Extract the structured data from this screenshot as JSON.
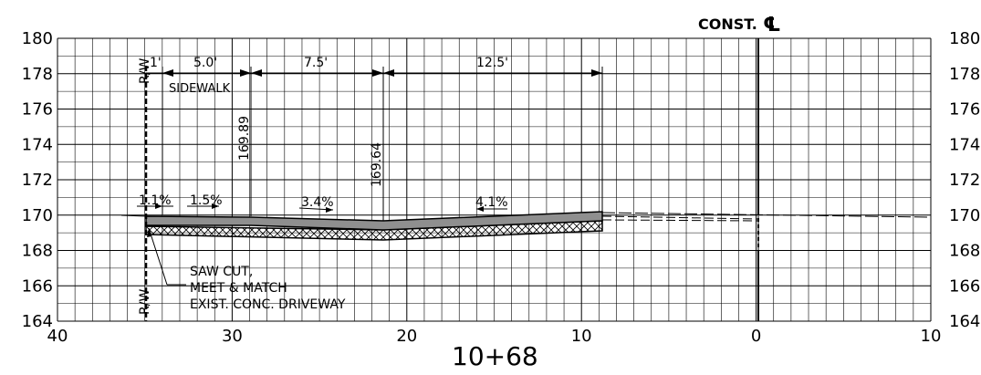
{
  "section": {
    "station_label": "10+68",
    "centerline_label": "CONST.",
    "centerline_symbol": "℄",
    "row_label_top": "R/W",
    "row_label_bottom": "R/W"
  },
  "axes": {
    "x_ticks": [
      "40",
      "30",
      "20",
      "10",
      "0",
      "10"
    ],
    "y_ticks_left": [
      "180",
      "178",
      "176",
      "174",
      "172",
      "170",
      "168",
      "166",
      "164"
    ],
    "y_ticks_right": [
      "180",
      "178",
      "176",
      "174",
      "172",
      "170",
      "168",
      "166",
      "164"
    ]
  },
  "dimensions": {
    "d1": "1'",
    "d2": "5.0'",
    "d3": "7.5'",
    "d4": "12.5'",
    "sidewalk": "SIDEWALK"
  },
  "elevations": {
    "e1": "169.89",
    "e2": "169.64"
  },
  "slopes": {
    "s1": "1.1%",
    "s2": "1.5%",
    "s3": "3.4%",
    "s4": "4.1%"
  },
  "note": {
    "line1": "SAW CUT,",
    "line2": "MEET & MATCH",
    "line3": "EXIST. CONC. DRIVEWAY"
  }
}
